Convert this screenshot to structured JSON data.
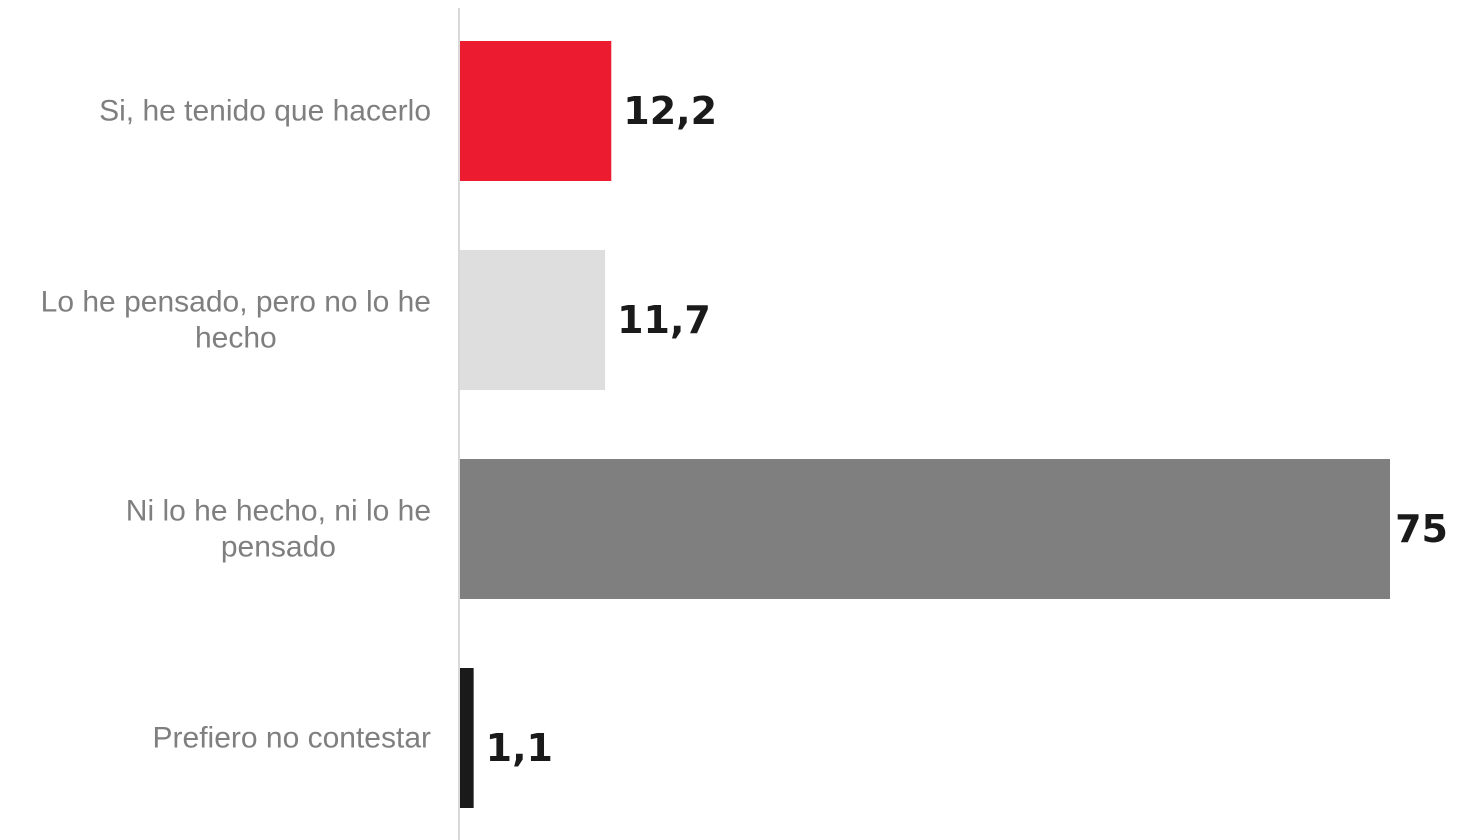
{
  "chart_data": {
    "type": "bar",
    "orientation": "horizontal",
    "categories": [
      [
        "Si, he tenido que hacerlo"
      ],
      [
        "Lo he pensado, pero no lo he",
        "hecho"
      ],
      [
        "Ni lo he hecho, ni lo he",
        "pensado"
      ],
      [
        "Prefiero no contestar"
      ]
    ],
    "values": [
      12.2,
      11.7,
      75,
      1.1
    ],
    "value_labels": [
      "12,2",
      "11,7",
      "75",
      "1,1"
    ],
    "bar_colors": [
      "#ed1b2f",
      "#dedede",
      "#7f7f7f",
      "#1a1a1a"
    ],
    "title": "",
    "xlabel": "",
    "ylabel": "",
    "xlim": [
      0,
      75
    ],
    "grid": false,
    "legend": "none"
  }
}
